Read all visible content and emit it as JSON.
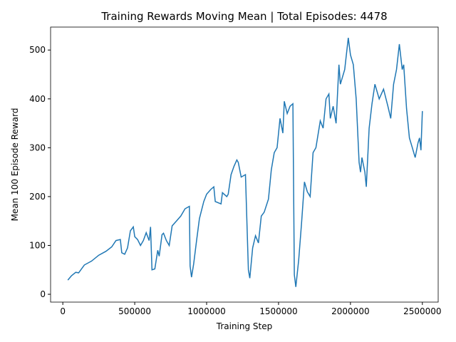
{
  "chart_data": {
    "type": "line",
    "title": "Training Rewards Moving Mean | Total Episodes: 4478",
    "x_label": "Training Step",
    "y_label": "Mean 100 Episode Reward",
    "x": [
      35000,
      60000,
      90000,
      110000,
      150000,
      200000,
      250000,
      300000,
      340000,
      370000,
      400000,
      410000,
      430000,
      450000,
      470000,
      490000,
      500000,
      520000,
      540000,
      560000,
      580000,
      600000,
      610000,
      620000,
      640000,
      660000,
      670000,
      690000,
      700000,
      720000,
      740000,
      760000,
      790000,
      820000,
      850000,
      880000,
      885000,
      895000,
      910000,
      930000,
      950000,
      980000,
      1000000,
      1030000,
      1050000,
      1060000,
      1100000,
      1110000,
      1140000,
      1150000,
      1170000,
      1190000,
      1210000,
      1220000,
      1240000,
      1270000,
      1290000,
      1300000,
      1320000,
      1340000,
      1360000,
      1380000,
      1400000,
      1430000,
      1450000,
      1470000,
      1490000,
      1510000,
      1530000,
      1540000,
      1560000,
      1580000,
      1600000,
      1610000,
      1620000,
      1640000,
      1660000,
      1680000,
      1700000,
      1720000,
      1740000,
      1760000,
      1790000,
      1810000,
      1830000,
      1850000,
      1860000,
      1880000,
      1900000,
      1920000,
      1930000,
      1960000,
      1985000,
      2000000,
      2020000,
      2040000,
      2060000,
      2070000,
      2080000,
      2100000,
      2110000,
      2130000,
      2150000,
      2170000,
      2200000,
      2230000,
      2260000,
      2280000,
      2300000,
      2320000,
      2340000,
      2360000,
      2370000,
      2390000,
      2410000,
      2430000,
      2450000,
      2470000,
      2480000,
      2490000,
      2500000
    ],
    "series": [
      {
        "name": "Mean 100 Episode Reward",
        "color": "#1f77b4",
        "values": [
          29,
          38,
          45,
          44,
          60,
          68,
          80,
          88,
          97,
          110,
          112,
          85,
          82,
          95,
          130,
          138,
          118,
          112,
          100,
          110,
          126,
          110,
          138,
          50,
          52,
          90,
          78,
          122,
          125,
          110,
          100,
          140,
          150,
          160,
          175,
          180,
          58,
          35,
          62,
          110,
          155,
          190,
          205,
          215,
          220,
          190,
          185,
          208,
          200,
          205,
          245,
          262,
          275,
          270,
          240,
          245,
          50,
          33,
          95,
          120,
          105,
          160,
          168,
          195,
          255,
          290,
          300,
          360,
          330,
          395,
          370,
          385,
          390,
          40,
          15,
          70,
          145,
          230,
          210,
          200,
          290,
          300,
          355,
          340,
          400,
          410,
          360,
          385,
          350,
          470,
          430,
          460,
          525,
          490,
          470,
          400,
          270,
          250,
          280,
          250,
          220,
          340,
          390,
          430,
          400,
          420,
          385,
          360,
          430,
          460,
          512,
          460,
          470,
          380,
          320,
          300,
          280,
          310,
          320,
          295,
          375
        ]
      }
    ],
    "xlim": [
      -85000,
      2610000
    ],
    "ylim": [
      -16,
      547
    ],
    "xticks": [
      0,
      500000,
      1000000,
      1500000,
      2000000,
      2500000
    ],
    "yticks": [
      0,
      100,
      200,
      300,
      400,
      500
    ]
  }
}
